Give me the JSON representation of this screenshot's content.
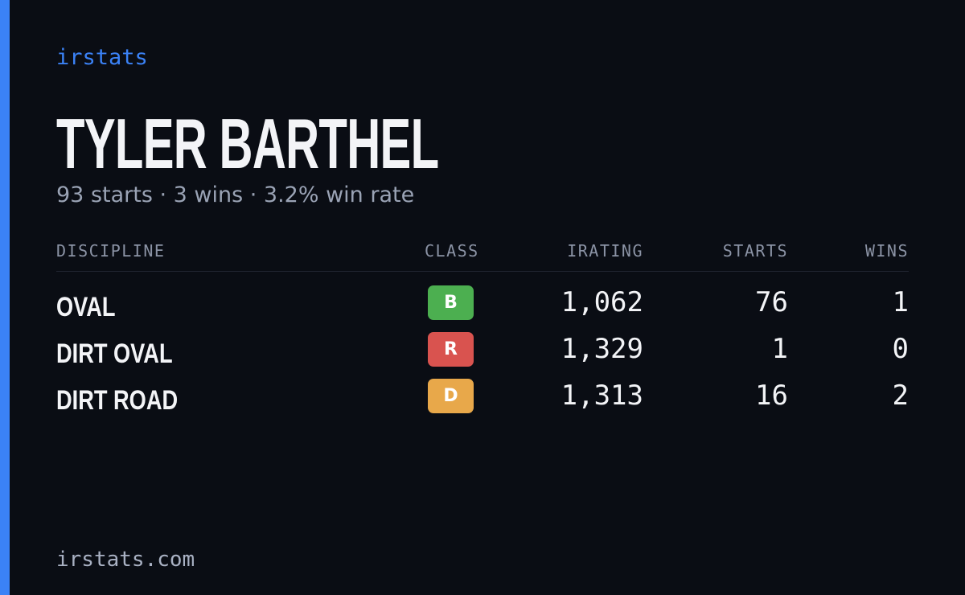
{
  "brand": "irstats",
  "header": {
    "name": "TYLER BARTHEL",
    "summary": "93 starts · 3 wins · 3.2% win rate"
  },
  "table": {
    "columns": [
      "DISCIPLINE",
      "CLASS",
      "IRATING",
      "STARTS",
      "WINS"
    ],
    "rows": [
      [
        "OVAL",
        "B",
        "1,062",
        "76",
        "1"
      ],
      [
        "DIRT OVAL",
        "R",
        "1,329",
        "1",
        "0"
      ],
      [
        "DIRT ROAD",
        "D",
        "1,313",
        "16",
        "2"
      ]
    ]
  },
  "footer": "irstats.com"
}
